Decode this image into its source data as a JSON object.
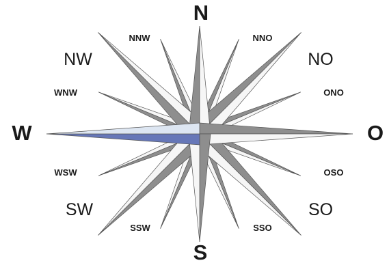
{
  "rose": {
    "labels": {
      "N": "N",
      "O": "O",
      "S": "S",
      "W": "W",
      "NO": "NO",
      "SO": "SO",
      "SW": "SW",
      "NW": "NW",
      "NNO": "NNO",
      "ONO": "ONO",
      "OSO": "OSO",
      "SSO": "SSO",
      "SSW": "SSW",
      "WSW": "WSW",
      "WNW": "WNW",
      "NNW": "NNW"
    },
    "highlighted_direction": "W",
    "colors": {
      "dark": "#8e8e8e",
      "light": "#f6f6f6",
      "outline": "#555555",
      "highlight": "#6677b8",
      "highlight_light": "#dde6f2"
    }
  }
}
